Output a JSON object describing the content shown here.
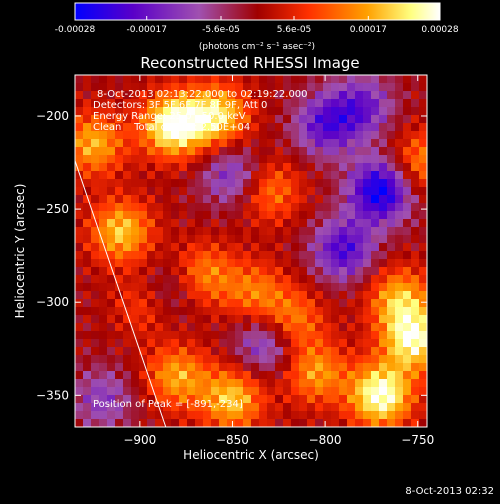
{
  "chart_data": {
    "type": "heatmap",
    "title": "Reconstructed RHESSI Image",
    "colorbar": {
      "ticks": [
        "-0.00028",
        "-0.00017",
        "-5.6e-05",
        "5.6e-05",
        "0.00017",
        "0.00028"
      ],
      "tick_values": [
        -0.00028,
        -0.00017,
        -5.6e-05,
        5.6e-05,
        0.00017,
        0.00028
      ],
      "range": [
        -0.00028,
        0.00028
      ],
      "unit_label": "(photons cm⁻² s⁻¹ asec⁻²)",
      "colors": [
        "#0000ff",
        "#5a00c8",
        "#a050b0",
        "#a00000",
        "#ff3000",
        "#ffa000",
        "#ffff80",
        "#ffffff"
      ]
    },
    "xlabel": "Heliocentric X (arcsec)",
    "ylabel": "Heliocentric Y (arcsec)",
    "xlim": [
      -935,
      -745
    ],
    "ylim": [
      -367,
      -178
    ],
    "xticks": [
      -900,
      -850,
      -800,
      -750
    ],
    "yticks": [
      -350,
      -300,
      -250,
      -200
    ],
    "limb_line": {
      "x": [
        -935,
        -886
      ],
      "y": [
        -224,
        -367
      ]
    },
    "peak": {
      "x": -891,
      "y": -234
    },
    "annotations": [
      "8-Oct-2013 02:13:22.000 to 02:19:22.000",
      "Detectors: 3F 5F 6F 7F 8F 9F, Att 0",
      "Energy Range: 25.0 - 50.0 keV",
      "Clean    Total counts: 2.50E+04"
    ],
    "peak_label": "Position of Peak = [-891,-234]",
    "intensity_blobs": [
      {
        "x": -882,
        "y": -205,
        "amp": 0.00028
      },
      {
        "x": -858,
        "y": -200,
        "amp": 0.00022
      },
      {
        "x": -925,
        "y": -215,
        "amp": 0.00018
      },
      {
        "x": -910,
        "y": -262,
        "amp": 0.0002
      },
      {
        "x": -895,
        "y": -300,
        "amp": 0.00016
      },
      {
        "x": -865,
        "y": -285,
        "amp": 0.00014
      },
      {
        "x": -838,
        "y": -295,
        "amp": 0.00013
      },
      {
        "x": -818,
        "y": -310,
        "amp": 0.00015
      },
      {
        "x": -805,
        "y": -338,
        "amp": 0.00016
      },
      {
        "x": -770,
        "y": -350,
        "amp": 0.00028
      },
      {
        "x": -752,
        "y": -320,
        "amp": 0.00025
      },
      {
        "x": -760,
        "y": -298,
        "amp": 0.00018
      },
      {
        "x": -850,
        "y": -352,
        "amp": 0.0002
      },
      {
        "x": -880,
        "y": -340,
        "amp": 0.00017
      },
      {
        "x": -830,
        "y": -240,
        "amp": 0.00014
      },
      {
        "x": -748,
        "y": -225,
        "amp": 0.00015
      },
      {
        "x": -770,
        "y": -240,
        "amp": -0.00028
      },
      {
        "x": -800,
        "y": -205,
        "amp": -0.00018
      },
      {
        "x": -850,
        "y": -232,
        "amp": -0.00015
      },
      {
        "x": -780,
        "y": -195,
        "amp": -0.00016
      },
      {
        "x": -888,
        "y": -296,
        "amp": -0.00015
      },
      {
        "x": -832,
        "y": -322,
        "amp": -0.00016
      },
      {
        "x": -920,
        "y": -352,
        "amp": -0.00012
      },
      {
        "x": -790,
        "y": -272,
        "amp": -0.0002
      }
    ]
  },
  "footer": {
    "timestamp": "8-Oct-2013 02:32"
  }
}
